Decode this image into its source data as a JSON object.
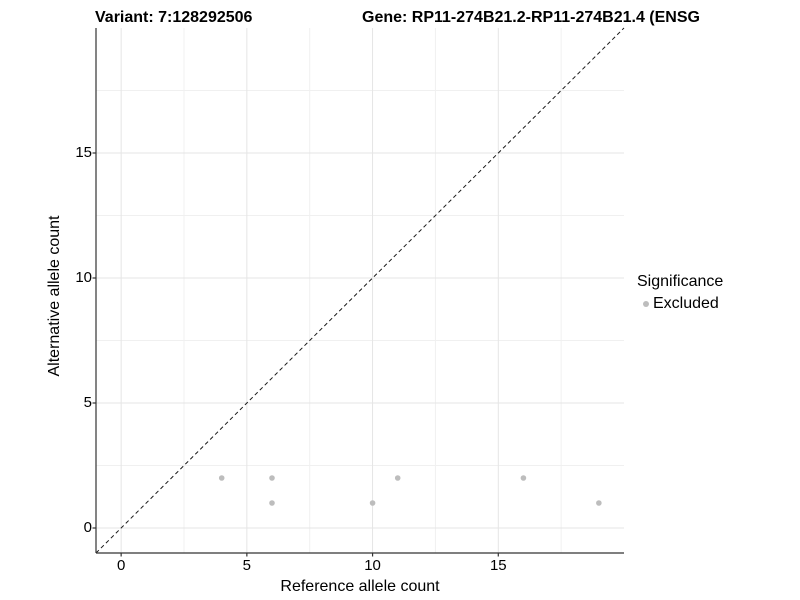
{
  "header": {
    "variant_title": "Variant: 7:128292506",
    "gene_title": "Gene: RP11-274B21.2-RP11-274B21.4 (ENSG"
  },
  "chart_data": {
    "type": "scatter",
    "title": "Variant: 7:128292506 — Gene: RP11-274B21.2-RP11-274B21.4 (ENSG",
    "xlabel": "Reference allele count",
    "ylabel": "Alternative allele count",
    "xlim": [
      -1,
      20
    ],
    "ylim": [
      -1,
      20
    ],
    "x_ticks": [
      0,
      5,
      10,
      15
    ],
    "y_ticks": [
      0,
      5,
      10,
      15
    ],
    "x_minor_gridlines": [
      2.5,
      7.5,
      12.5,
      17.5
    ],
    "y_minor_gridlines": [
      2.5,
      7.5,
      12.5,
      17.5
    ],
    "grid": true,
    "legend_position": "right",
    "identity_line": {
      "equation": "y = x",
      "style": "dashed",
      "color": "#1a1a1a"
    },
    "series": [
      {
        "name": "Excluded",
        "color": "#bdbdbd",
        "points": [
          [
            4,
            2
          ],
          [
            6,
            2
          ],
          [
            6,
            1
          ],
          [
            10,
            1
          ],
          [
            11,
            2
          ],
          [
            16,
            2
          ],
          [
            19,
            1
          ]
        ]
      }
    ],
    "legend": {
      "title": "Significance",
      "items": [
        {
          "label": "Excluded",
          "color": "#bdbdbd",
          "marker": "dot-icon"
        }
      ]
    },
    "style": {
      "major_grid_color": "#e5e5e5",
      "minor_grid_color": "#f0f0f0",
      "axis_line_color": "#333333",
      "point_radius_px": 2.8
    }
  }
}
